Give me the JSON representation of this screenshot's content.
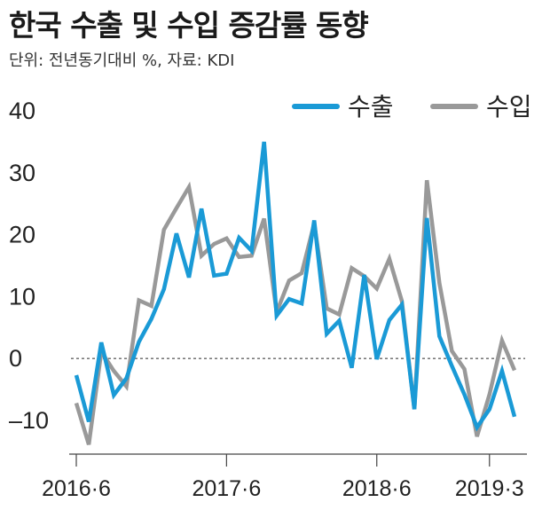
{
  "title": "한국 수출 및 수입 증감률 동향",
  "subtitle": "단위: 전년동기대비 %, 자료: KDI",
  "chart_data": {
    "type": "line",
    "title": "한국 수출 및 수입 증감률 동향",
    "subtitle": "단위: 전년동기대비 %, 자료: KDI",
    "ylim": [
      -14,
      40
    ],
    "y_ticks": [
      40,
      30,
      20,
      10,
      0,
      -10
    ],
    "zero_line": "dashed",
    "grid": false,
    "legend_position": "top-right",
    "x": [
      "2016-06",
      "2016-07",
      "2016-08",
      "2016-09",
      "2016-10",
      "2016-11",
      "2016-12",
      "2017-01",
      "2017-02",
      "2017-03",
      "2017-04",
      "2017-05",
      "2017-06",
      "2017-07",
      "2017-08",
      "2017-09",
      "2017-10",
      "2017-11",
      "2017-12",
      "2018-01",
      "2018-02",
      "2018-03",
      "2018-04",
      "2018-05",
      "2018-06",
      "2018-07",
      "2018-08",
      "2018-09",
      "2018-10",
      "2018-11",
      "2018-12",
      "2019-01",
      "2019-02",
      "2019-03",
      "2019-04",
      "2019-05"
    ],
    "x_tick_labels": [
      "2016·6",
      "2017·6",
      "2018·6",
      "2019·3"
    ],
    "x_tick_positions": [
      "2016-06",
      "2017-06",
      "2018-06",
      "2019-03"
    ],
    "series": [
      {
        "name": "수출",
        "color": "#1a9ad6",
        "values": [
          -2.7,
          -10.2,
          2.6,
          -5.9,
          -3.2,
          2.7,
          6.4,
          11.2,
          20.2,
          13.1,
          24.2,
          13.4,
          13.7,
          19.5,
          17.4,
          35.0,
          6.9,
          9.6,
          8.9,
          22.3,
          4.0,
          6.1,
          -1.5,
          13.5,
          -0.1,
          6.2,
          8.7,
          -8.2,
          22.7,
          3.6,
          -1.2,
          -5.8,
          -11.1,
          -8.2,
          -2.0,
          -9.4
        ]
      },
      {
        "name": "수입",
        "color": "#999999",
        "values": [
          -7.2,
          -13.9,
          1.1,
          -2.0,
          -4.5,
          9.4,
          8.5,
          20.8,
          24.3,
          27.7,
          16.6,
          18.5,
          19.4,
          16.4,
          16.6,
          22.6,
          7.5,
          12.6,
          13.8,
          21.8,
          8.1,
          7.1,
          14.6,
          13.3,
          11.3,
          16.1,
          9.3,
          -8.2,
          28.8,
          12.2,
          1.2,
          -1.7,
          -12.6,
          -5.8,
          2.9,
          -1.9
        ]
      }
    ]
  }
}
